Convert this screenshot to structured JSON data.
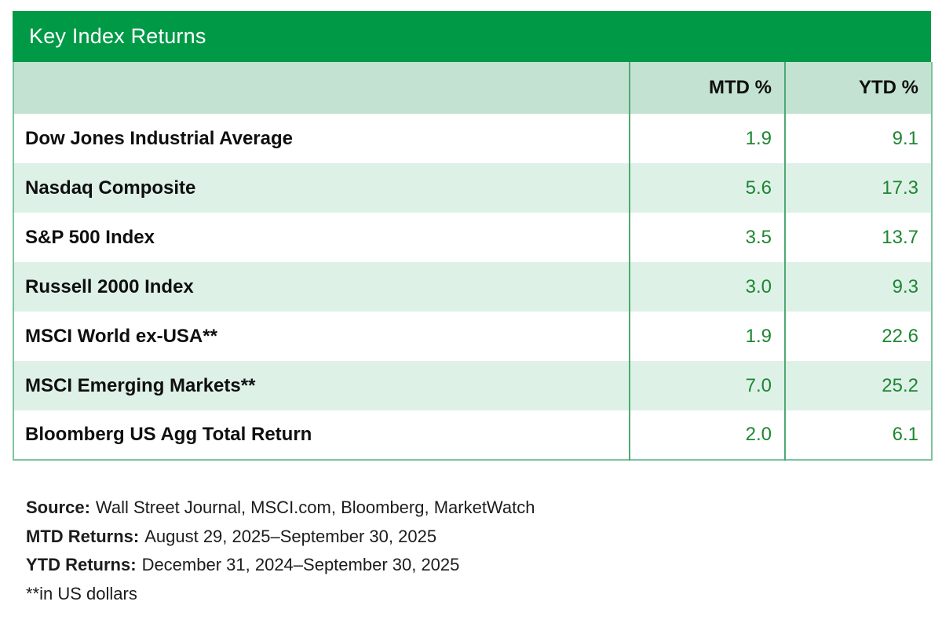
{
  "title": "Key Index Returns",
  "chart_data": {
    "type": "table",
    "title": "Key Index Returns",
    "columns": [
      "",
      "MTD %",
      "YTD %"
    ],
    "rows": [
      {
        "label": "Dow Jones Industrial Average",
        "mtd": "1.9",
        "ytd": "9.1"
      },
      {
        "label": "Nasdaq Composite",
        "mtd": "5.6",
        "ytd": "17.3"
      },
      {
        "label": "S&P 500 Index",
        "mtd": "3.5",
        "ytd": "13.7"
      },
      {
        "label": "Russell 2000 Index",
        "mtd": "3.0",
        "ytd": "9.3"
      },
      {
        "label": "MSCI World ex-USA**",
        "mtd": "1.9",
        "ytd": "22.6"
      },
      {
        "label": "MSCI Emerging Markets**",
        "mtd": "7.0",
        "ytd": "25.2"
      },
      {
        "label": "Bloomberg US Agg Total Return",
        "mtd": "2.0",
        "ytd": "6.1"
      }
    ]
  },
  "footnotes": [
    {
      "label": "Source:",
      "text": "Wall Street Journal, MSCI.com, Bloomberg, MarketWatch"
    },
    {
      "label": "MTD Returns:",
      "text": "August 29, 2025–September 30, 2025"
    },
    {
      "label": "YTD Returns:",
      "text": "December 31, 2024–September 30, 2025"
    },
    {
      "label": "",
      "text": "**in US dollars"
    }
  ],
  "colors": {
    "title_bar_green": "#009a47",
    "column_header_bg": "#c3e2d1",
    "row_alt_bg": "#def1e7",
    "value_text_green": "#1e8632",
    "divider_green": "#4fa874",
    "outer_border_green": "#7cc39e"
  }
}
